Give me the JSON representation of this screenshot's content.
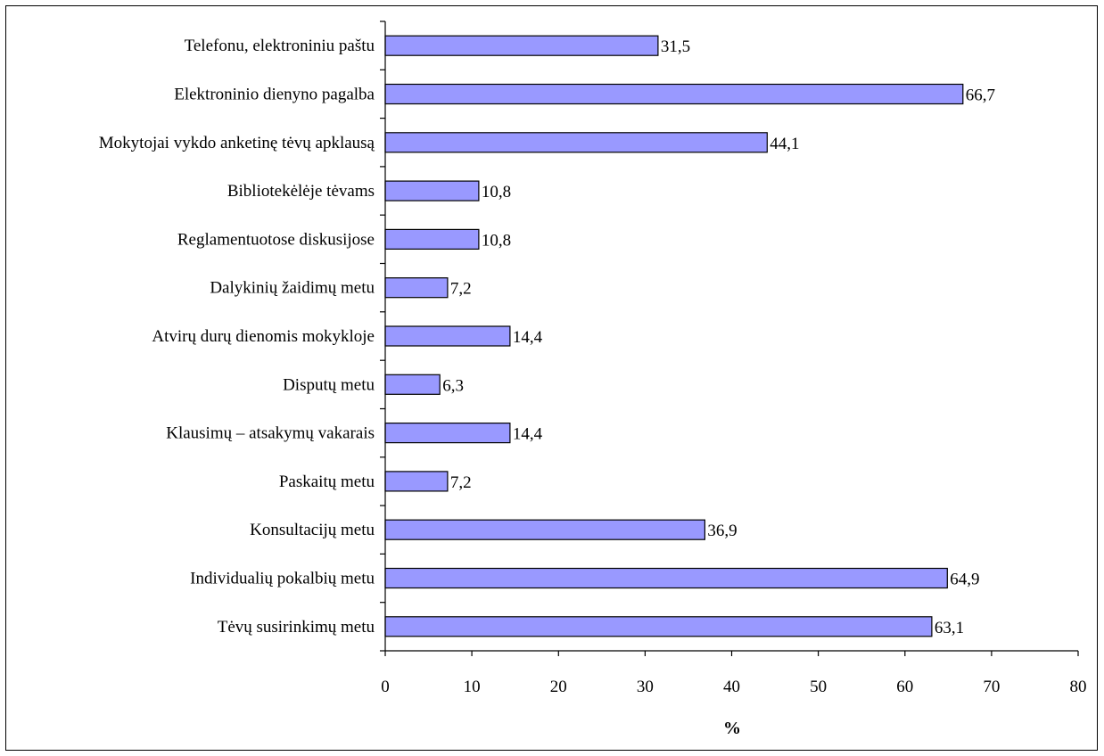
{
  "chart_data": {
    "type": "bar",
    "orientation": "horizontal",
    "categories": [
      "Telefonu, elektroniniu paštu",
      "Elektroninio dienyno pagalba",
      "Mokytojai vykdo anketinę tėvų apklausą",
      "Bibliotekėlėje tėvams",
      "Reglamentuotose diskusijose",
      "Dalykinių žaidimų metu",
      "Atvirų durų dienomis mokykloje",
      "Disputų metu",
      "Klausimų – atsakymų vakarais",
      "Paskaitų metu",
      "Konsultacijų metu",
      "Individualių pokalbių metu",
      "Tėvų susirinkimų metu"
    ],
    "values": [
      31.5,
      66.7,
      44.1,
      10.8,
      10.8,
      7.2,
      14.4,
      6.3,
      14.4,
      7.2,
      36.9,
      64.9,
      63.1
    ],
    "value_labels": [
      "31,5",
      "66,7",
      "44,1",
      "10,8",
      "10,8",
      "7,2",
      "14,4",
      "6,3",
      "14,4",
      "7,2",
      "36,9",
      "64,9",
      "63,1"
    ],
    "title": "",
    "xlabel": "%",
    "ylabel": "",
    "xlim": [
      0,
      80
    ],
    "xticks": [
      0,
      10,
      20,
      30,
      40,
      50,
      60,
      70,
      80
    ],
    "grid": false,
    "legend": "none",
    "bar_color": "#9999ff",
    "bar_edge_color": "#000000"
  }
}
